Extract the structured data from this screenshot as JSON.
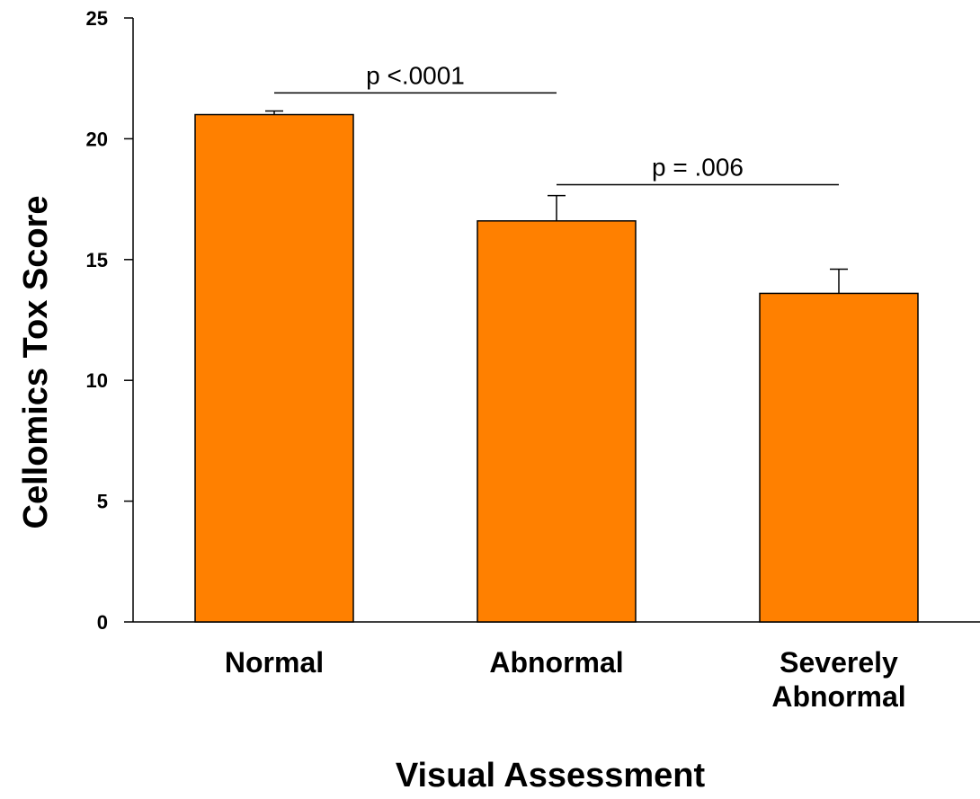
{
  "chart_data": {
    "type": "bar",
    "categories": [
      "Normal",
      "Abnormal",
      "Severely Abnormal"
    ],
    "category_lines": [
      [
        "Normal"
      ],
      [
        "Abnormal"
      ],
      [
        "Severely",
        "Abnormal"
      ]
    ],
    "values": [
      21.0,
      16.6,
      13.6
    ],
    "error_upper": [
      0.15,
      1.05,
      1.0
    ],
    "title": "",
    "xlabel": "Visual Assessment",
    "ylabel": "Cellomics Tox Score",
    "ylim": [
      0,
      25
    ],
    "yticks": [
      0,
      5,
      10,
      15,
      20,
      25
    ],
    "grid": false,
    "legend": "none",
    "bar_color": "#ff8000",
    "annotations": [
      {
        "text": "p <.0001",
        "from": "Normal",
        "to": "Abnormal",
        "level": 21.9
      },
      {
        "text": "p = .006",
        "from": "Abnormal",
        "to": "Severely Abnormal",
        "level": 18.1
      }
    ]
  }
}
